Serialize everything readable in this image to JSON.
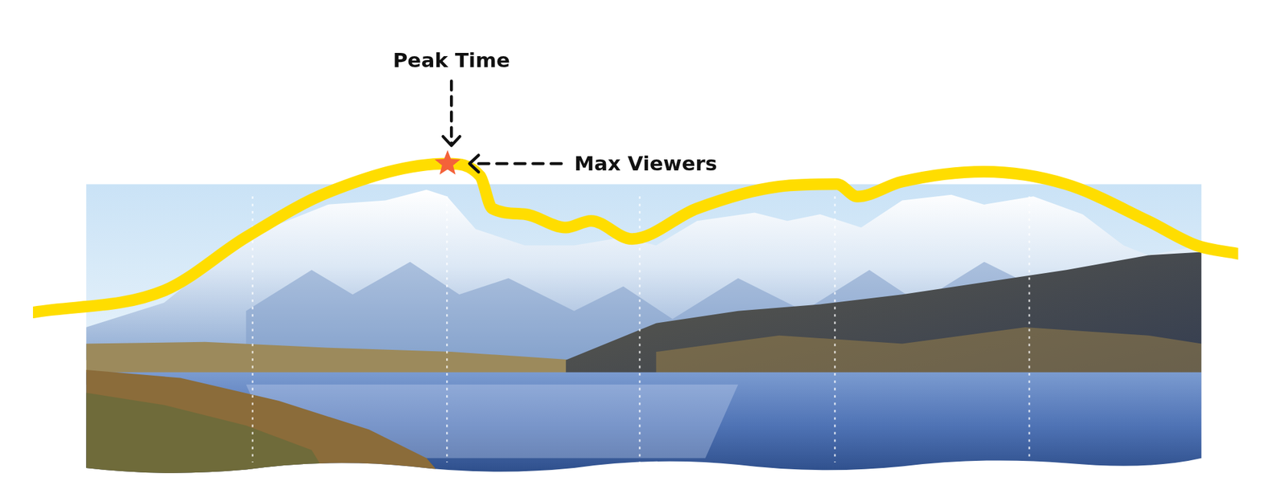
{
  "chart_data": {
    "type": "line",
    "x": [
      0,
      10.9,
      17.7,
      24.5,
      34.4,
      37.1,
      38.1,
      40.8,
      44.2,
      46.3,
      49.7,
      55.1,
      61.9,
      66.7,
      68.4,
      72.1,
      78.9,
      85.7,
      92.5,
      96.6,
      100
    ],
    "values": [
      34.5,
      39.1,
      50.3,
      59.7,
      65.7,
      63.1,
      56.3,
      55.1,
      52.3,
      53.7,
      49.9,
      56.3,
      60.9,
      61.4,
      58.8,
      61.9,
      64.0,
      61.4,
      53.7,
      48.5,
      46.8
    ],
    "color": "#ffdd00",
    "xlim": [
      0,
      100
    ],
    "ylim": [
      0,
      100
    ],
    "grid": false,
    "tick_labels": false,
    "annotations": [
      {
        "text": "Peak Time",
        "x": 34.4,
        "y": 65.7
      },
      {
        "text": "Max Viewers",
        "x": 34.4,
        "y": 65.7
      }
    ]
  }
}
